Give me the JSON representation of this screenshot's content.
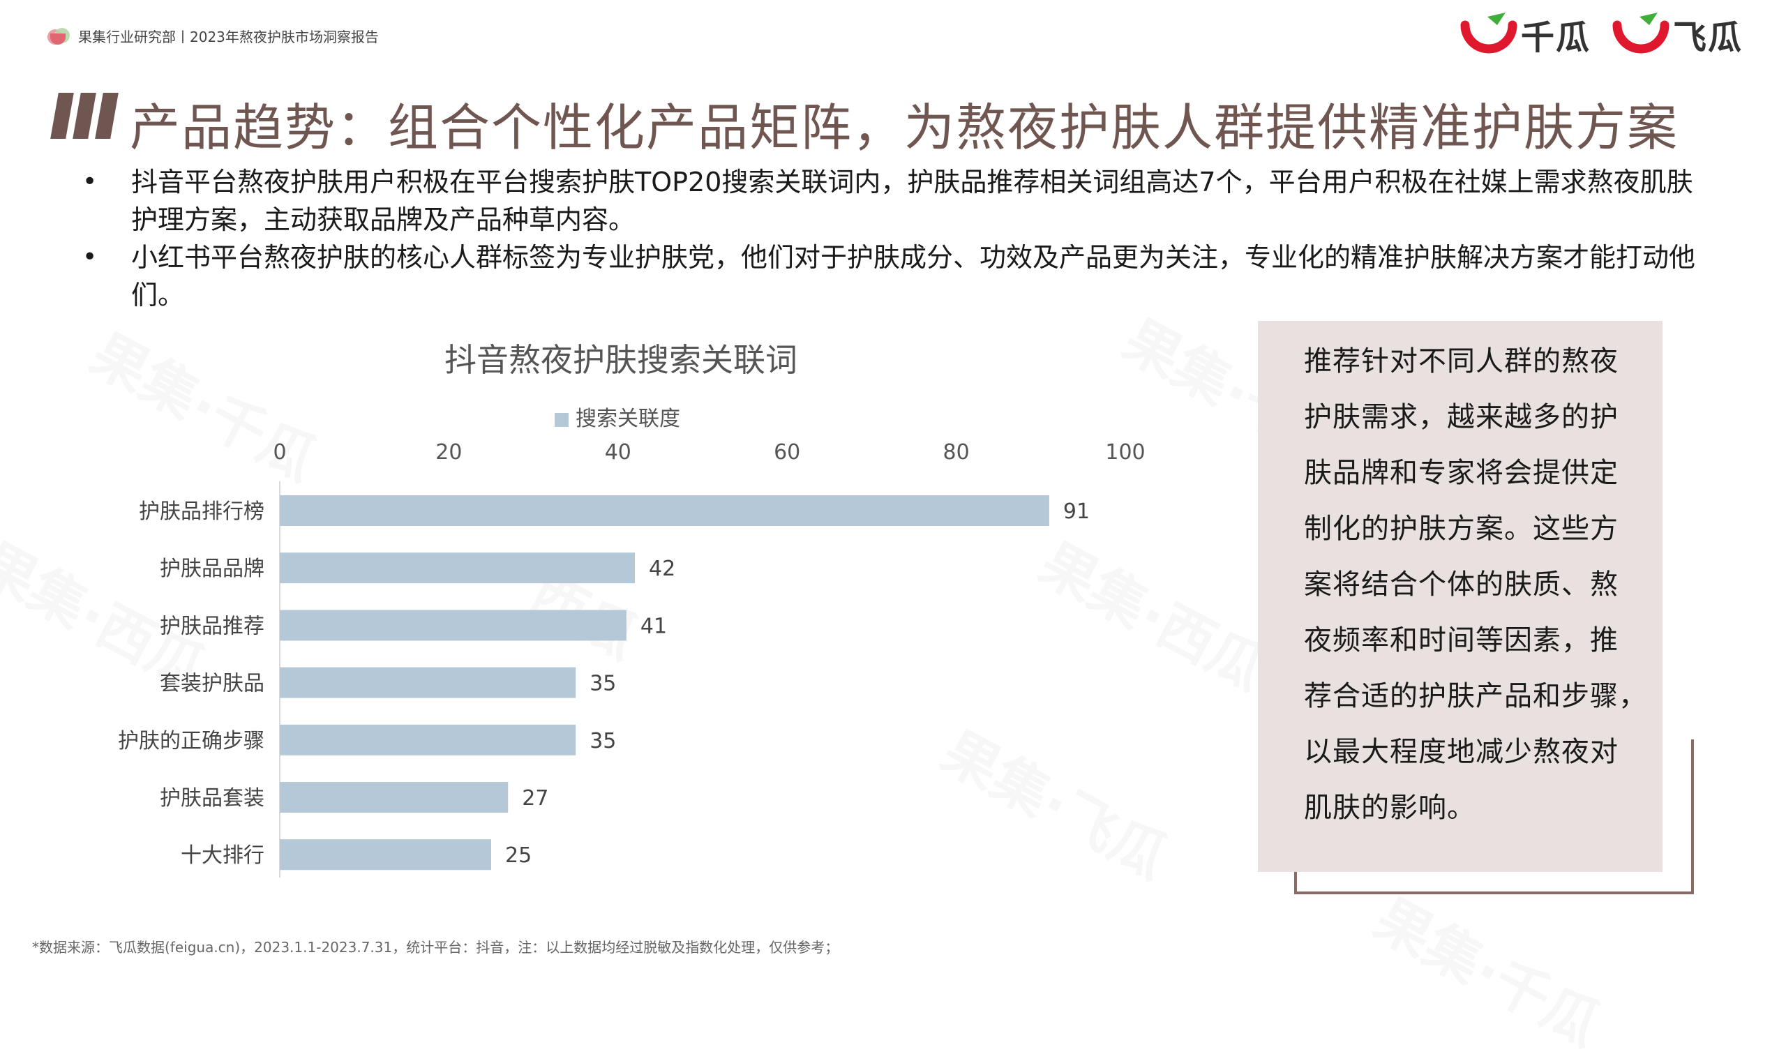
{
  "header": {
    "source": "果集行业研究部丨2023年熬夜护肤市场洞察报告",
    "brands": [
      {
        "name": "千瓜",
        "icon": "qiangua-logo-icon"
      },
      {
        "name": "飞瓜",
        "icon": "feigua-logo-icon"
      }
    ]
  },
  "title": "产品趋势：组合个性化产品矩阵，为熬夜护肤人群提供精准护肤方案",
  "bullets": [
    "抖音平台熬夜护肤用户积极在平台搜索护肤TOP20搜索关联词内，护肤品推荐相关词组高达7个，平台用户积极在社媒上需求熬夜肌肤护理方案，主动获取品牌及产品种草内容。",
    "小红书平台熬夜护肤的核心人群标签为专业护肤党，他们对于护肤成分、功效及产品更为关注，专业化的精准护肤解决方案才能打动他们。"
  ],
  "chart_data": {
    "type": "bar",
    "orientation": "horizontal",
    "title": "抖音熬夜护肤搜索关联词",
    "categories": [
      "护肤品排行榜",
      "护肤品品牌",
      "护肤品推荐",
      "套装护肤品",
      "护肤的正确步骤",
      "护肤品套装",
      "十大排行"
    ],
    "series": [
      {
        "name": "搜索关联度",
        "values": [
          91,
          42,
          41,
          35,
          35,
          27,
          25
        ],
        "color": "#b4c8d8"
      }
    ],
    "xlim": [
      0,
      100
    ],
    "xticks": [
      "0",
      "20",
      "40",
      "60",
      "80",
      "100"
    ],
    "axis_position": "top",
    "legend_position": "top",
    "grid": false,
    "data_labels": true
  },
  "note": "推荐针对不同人群的熬夜护肤需求，越来越多的护肤品牌和专家将会提供定制化的护肤方案。这些方案将结合个体的肤质、熬夜频率和时间等因素，推荐合适的护肤产品和步骤，以最大程度地减少熬夜对肌肤的影响。",
  "note_lines": [
    "推荐针对不同人群的熬夜",
    "护肤需求，越来越多的护",
    "肤品牌和专家将会提供定",
    "制化的护肤方案。这些方",
    "案将结合个体的肤质、熬",
    "夜频率和时间等因素，推",
    "荐合适的护肤产品和步骤，",
    "以最大程度地减少熬夜对",
    "肌肤的影响。"
  ],
  "footnote": "*数据来源：飞瓜数据(feigua.cn)，2023.1.1-2023.7.31，统计平台：抖音，注：以上数据均经过脱敏及指数化处理，仅供参考；",
  "colors": {
    "title": "#6f5650",
    "bar": "#b4c8d8",
    "note_bg": "#e8e1df",
    "brand_red": "#e0182d",
    "brand_green": "#3fae3a"
  }
}
